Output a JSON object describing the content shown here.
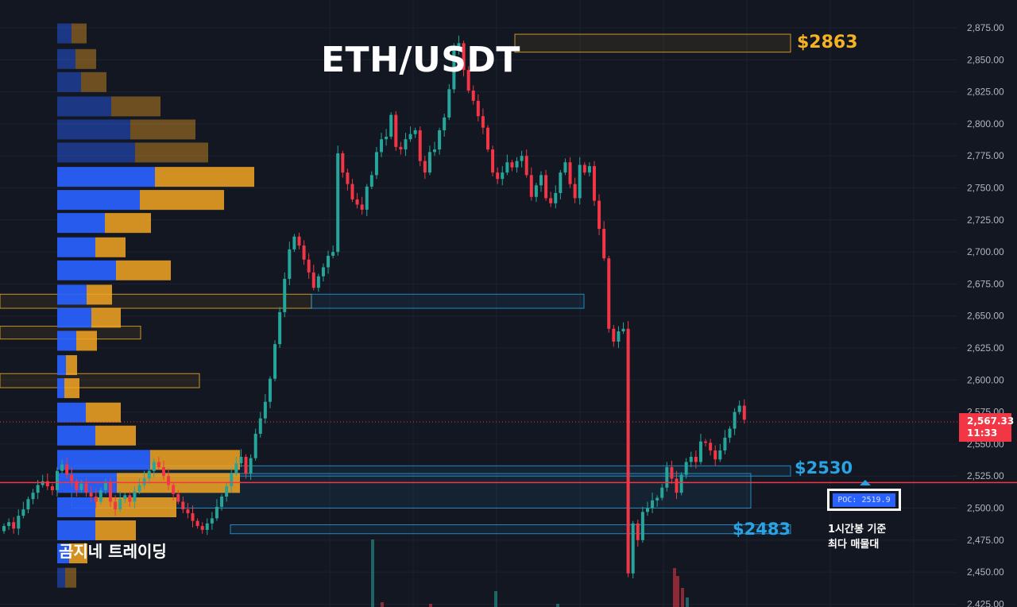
{
  "title": "ETH/USDT",
  "watermark": "곰지네 트레이딩",
  "annotations": {
    "resistance_label": "$2863",
    "support_label_1": "$2530",
    "support_label_2": "$2483",
    "poc_label": "POC: 2519.9",
    "poc_note_line1": "1시간봉 기준",
    "poc_note_line2": "최다 매물대"
  },
  "current_price": {
    "value": "2,567.33",
    "countdown": "11:33"
  },
  "colors": {
    "background": "#131722",
    "up": "#26a69a",
    "down": "#f23645",
    "poc_line": "#f23645",
    "volume_profile_up": "#2962ff",
    "volume_profile_down": "#f5a623",
    "resistance": "#f5b324",
    "support": "#29a3e4"
  },
  "chart_data": {
    "type": "candlestick",
    "symbol": "ETH/USDT",
    "timeframe": "1h",
    "ylim": [
      2420,
      2885
    ],
    "y_ticks": [
      "2,875.00",
      "2,850.00",
      "2,825.00",
      "2,800.00",
      "2,775.00",
      "2,750.00",
      "2,725.00",
      "2,700.00",
      "2,675.00",
      "2,650.00",
      "2,625.00",
      "2,600.00",
      "2,575.00",
      "2,550.00",
      "2,525.00",
      "2,500.00",
      "2,475.00",
      "2,450.00",
      "2,425.00"
    ],
    "y_tick_values": [
      2875,
      2850,
      2825,
      2800,
      2775,
      2750,
      2725,
      2700,
      2675,
      2650,
      2625,
      2600,
      2575,
      2550,
      2525,
      2500,
      2475,
      2450,
      2425
    ],
    "poc": 2519.9,
    "last_price": 2567.33,
    "candle_closes": [
      2486,
      2489,
      2484,
      2494,
      2499,
      2507,
      2512,
      2518,
      2521,
      2517,
      2514,
      2529,
      2534,
      2526,
      2521,
      2514,
      2519,
      2512,
      2509,
      2505,
      2514,
      2520,
      2505,
      2499,
      2507,
      2510,
      2505,
      2513,
      2518,
      2523,
      2529,
      2536,
      2532,
      2525,
      2518,
      2511,
      2505,
      2499,
      2496,
      2490,
      2486,
      2483,
      2488,
      2492,
      2501,
      2509,
      2517,
      2527,
      2535,
      2540,
      2527,
      2539,
      2558,
      2570,
      2583,
      2601,
      2628,
      2653,
      2679,
      2702,
      2712,
      2705,
      2694,
      2684,
      2672,
      2681,
      2688,
      2697,
      2700,
      2777,
      2762,
      2753,
      2741,
      2737,
      2733,
      2751,
      2760,
      2778,
      2788,
      2790,
      2807,
      2782,
      2780,
      2788,
      2792,
      2795,
      2771,
      2762,
      2778,
      2780,
      2795,
      2805,
      2827,
      2858,
      2863,
      2842,
      2826,
      2818,
      2806,
      2797,
      2780,
      2762,
      2757,
      2762,
      2770,
      2766,
      2771,
      2775,
      2760,
      2743,
      2752,
      2760,
      2742,
      2738,
      2746,
      2762,
      2770,
      2753,
      2742,
      2768,
      2762,
      2767,
      2740,
      2718,
      2695,
      2640,
      2630,
      2638,
      2640,
      2449,
      2488,
      2475,
      2497,
      2500,
      2506,
      2508,
      2516,
      2532,
      2523,
      2512,
      2526,
      2536,
      2540,
      2536,
      2552,
      2551,
      2545,
      2538,
      2545,
      2555,
      2562,
      2575,
      2580,
      2569
    ],
    "key_levels": {
      "resistance": 2863,
      "support_1": 2530,
      "support_2": 2483
    },
    "volume_profile": {
      "bins": [
        2870,
        2850,
        2832,
        2813,
        2795,
        2777,
        2758,
        2740,
        2722,
        2703,
        2685,
        2666,
        2648,
        2630,
        2611,
        2593,
        2574,
        2556,
        2537,
        2519,
        2500,
        2482,
        2464,
        2445
      ],
      "up": [
        18,
        23,
        30,
        68,
        92,
        98,
        123,
        104,
        60,
        48,
        74,
        37,
        43,
        24,
        11,
        9,
        36,
        48,
        117,
        75,
        48,
        48,
        15,
        10
      ],
      "down": [
        19,
        26,
        32,
        62,
        82,
        92,
        125,
        106,
        58,
        38,
        69,
        32,
        37,
        26,
        14,
        19,
        44,
        51,
        113,
        155,
        102,
        51,
        23,
        14
      ]
    }
  }
}
